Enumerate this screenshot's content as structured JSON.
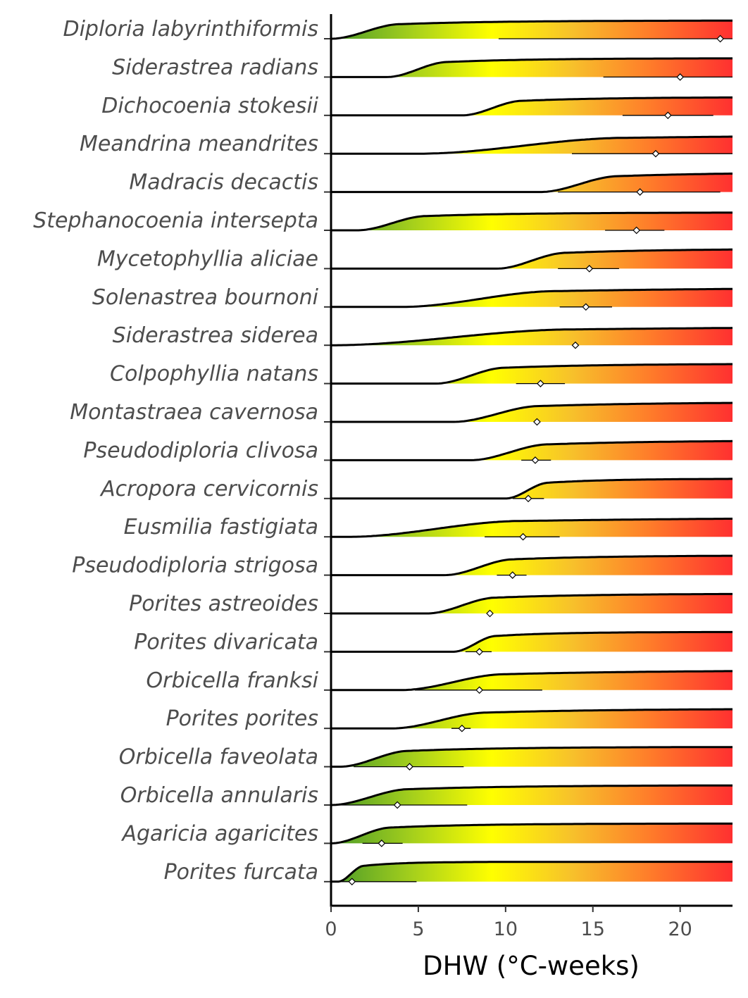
{
  "chart_data": {
    "type": "ridgeline",
    "xlabel": "DHW (°C-weeks)",
    "xlim": [
      0,
      23
    ],
    "xticks": [
      0,
      5,
      10,
      15,
      20
    ],
    "grid": false,
    "legend": "none",
    "fill_gradient": [
      "#4a9a2a",
      "#a4cf1c",
      "#ffff00",
      "#f7c12b",
      "#ff7a2a",
      "#ff3030"
    ],
    "species": [
      {
        "name": "Diploria labyrinthiformis",
        "mean": 22.3,
        "ci": [
          9.6,
          23.0
        ],
        "onset": 0.0,
        "rise": 4.0,
        "plateau": 0.92,
        "height_frac": 1.0
      },
      {
        "name": "Siderastrea radians",
        "mean": 20.0,
        "ci": [
          15.6,
          23.0
        ],
        "onset": 3.2,
        "rise": 3.5,
        "plateau": 0.95,
        "height_frac": 1.0
      },
      {
        "name": "Dichocoenia stokesii",
        "mean": 19.3,
        "ci": [
          16.7,
          21.9
        ],
        "onset": 7.5,
        "rise": 3.5,
        "plateau": 0.92,
        "height_frac": 1.0
      },
      {
        "name": "Meandrina meandrites",
        "mean": 18.6,
        "ci": [
          13.8,
          23.0
        ],
        "onset": 5.0,
        "rise": 12.0,
        "plateau": 1.0,
        "height_frac": 1.0
      },
      {
        "name": "Madracis decactis",
        "mean": 17.7,
        "ci": [
          13.0,
          22.3
        ],
        "onset": 12.0,
        "rise": 4.5,
        "plateau": 1.0,
        "height_frac": 1.0
      },
      {
        "name": "Stephanocoenia intersepta",
        "mean": 17.5,
        "ci": [
          15.7,
          19.1
        ],
        "onset": 1.5,
        "rise": 4.0,
        "plateau": 0.9,
        "height_frac": 1.0
      },
      {
        "name": "Mycetophyllia aliciae",
        "mean": 14.8,
        "ci": [
          13.0,
          16.5
        ],
        "onset": 9.5,
        "rise": 4.0,
        "plateau": 1.0,
        "height_frac": 1.0
      },
      {
        "name": "Solenastrea bournoni",
        "mean": 14.6,
        "ci": [
          13.1,
          16.1
        ],
        "onset": 4.0,
        "rise": 9.0,
        "plateau": 1.0,
        "height_frac": 1.0
      },
      {
        "name": "Siderastrea siderea",
        "mean": 14.0,
        "ci": [
          14.0,
          14.0
        ],
        "onset": 0.0,
        "rise": 14.0,
        "plateau": 1.0,
        "height_frac": 1.0
      },
      {
        "name": "Colpophyllia natans",
        "mean": 12.0,
        "ci": [
          10.6,
          13.4
        ],
        "onset": 6.0,
        "rise": 4.0,
        "plateau": 1.0,
        "height_frac": 1.0
      },
      {
        "name": "Montastraea cavernosa",
        "mean": 11.8,
        "ci": [
          11.8,
          11.8
        ],
        "onset": 7.0,
        "rise": 5.0,
        "plateau": 1.0,
        "height_frac": 1.0
      },
      {
        "name": "Pseudodiploria clivosa",
        "mean": 11.7,
        "ci": [
          10.9,
          12.6
        ],
        "onset": 8.0,
        "rise": 4.5,
        "plateau": 1.0,
        "height_frac": 1.0
      },
      {
        "name": "Acropora cervicornis",
        "mean": 11.3,
        "ci": [
          10.4,
          12.2
        ],
        "onset": 10.0,
        "rise": 2.5,
        "plateau": 1.0,
        "height_frac": 1.0
      },
      {
        "name": "Eusmilia fastigiata",
        "mean": 11.0,
        "ci": [
          8.8,
          13.1
        ],
        "onset": 1.0,
        "rise": 10.0,
        "plateau": 1.0,
        "height_frac": 1.0
      },
      {
        "name": "Pseudodiploria strigosa",
        "mean": 10.4,
        "ci": [
          9.5,
          11.2
        ],
        "onset": 6.5,
        "rise": 4.0,
        "plateau": 1.0,
        "height_frac": 1.0
      },
      {
        "name": "Porites astreoides",
        "mean": 9.1,
        "ci": [
          9.1,
          9.1
        ],
        "onset": 5.5,
        "rise": 4.0,
        "plateau": 1.0,
        "height_frac": 1.0
      },
      {
        "name": "Porites divaricata",
        "mean": 8.5,
        "ci": [
          7.7,
          9.2
        ],
        "onset": 7.0,
        "rise": 2.5,
        "plateau": 1.0,
        "height_frac": 1.0
      },
      {
        "name": "Orbicella franksi",
        "mean": 8.5,
        "ci": [
          4.8,
          12.1
        ],
        "onset": 4.0,
        "rise": 6.0,
        "plateau": 1.0,
        "height_frac": 1.0
      },
      {
        "name": "Porites porites",
        "mean": 7.5,
        "ci": [
          6.9,
          8.0
        ],
        "onset": 3.5,
        "rise": 5.5,
        "plateau": 1.0,
        "height_frac": 1.0
      },
      {
        "name": "Orbicella faveolata",
        "mean": 4.5,
        "ci": [
          1.3,
          7.6
        ],
        "onset": 0.5,
        "rise": 4.0,
        "plateau": 1.0,
        "height_frac": 1.0
      },
      {
        "name": "Orbicella annularis",
        "mean": 3.8,
        "ci": [
          0.3,
          7.8
        ],
        "onset": 0.0,
        "rise": 4.5,
        "plateau": 1.0,
        "height_frac": 1.0
      },
      {
        "name": "Agaricia agaricites",
        "mean": 2.9,
        "ci": [
          1.8,
          4.1
        ],
        "onset": 0.0,
        "rise": 3.5,
        "plateau": 1.0,
        "height_frac": 1.0
      },
      {
        "name": "Porites furcata",
        "mean": 1.2,
        "ci": [
          0.3,
          4.9
        ],
        "onset": 0.4,
        "rise": 1.5,
        "plateau": 1.0,
        "height_frac": 1.0
      }
    ]
  }
}
